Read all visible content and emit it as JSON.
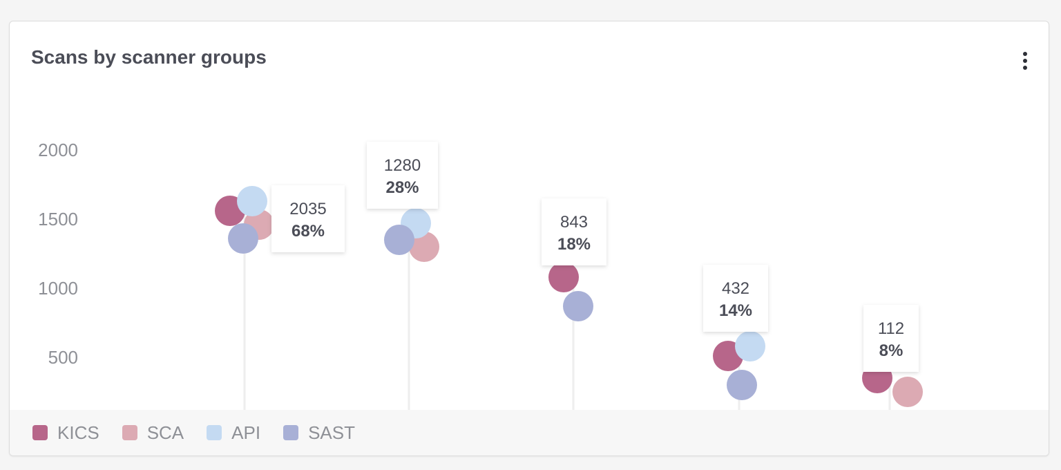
{
  "card": {
    "title": "Scans by scanner groups"
  },
  "colors": {
    "KICS": "#b7668a",
    "SCA": "#dcaab3",
    "API": "#c4daf2",
    "SAST": "#a8b0d6"
  },
  "legend": [
    {
      "name": "KICS",
      "color": "#b7668a"
    },
    {
      "name": "SCA",
      "color": "#dcaab3"
    },
    {
      "name": "API",
      "color": "#c4daf2"
    },
    {
      "name": "SAST",
      "color": "#a8b0d6"
    }
  ],
  "chart_data": {
    "type": "scatter",
    "title": "Scans by scanner groups",
    "yticks": [
      500,
      1000,
      1500,
      2000
    ],
    "ylim": [
      0,
      2300
    ],
    "grid": false,
    "legend_position": "bottom",
    "groups": [
      {
        "label_value": "2035",
        "label_pct": "68%",
        "points": [
          {
            "series": "KICS",
            "value": 1560
          },
          {
            "series": "SCA",
            "value": 1460
          },
          {
            "series": "API",
            "value": 1630
          },
          {
            "series": "SAST",
            "value": 1360
          }
        ]
      },
      {
        "label_value": "1280",
        "label_pct": "28%",
        "points": [
          {
            "series": "SCA",
            "value": 1300
          },
          {
            "series": "API",
            "value": 1470
          },
          {
            "series": "SAST",
            "value": 1350
          }
        ]
      },
      {
        "label_value": "843",
        "label_pct": "18%",
        "points": [
          {
            "series": "KICS",
            "value": 1080
          },
          {
            "series": "SAST",
            "value": 870
          }
        ]
      },
      {
        "label_value": "432",
        "label_pct": "14%",
        "points": [
          {
            "series": "KICS",
            "value": 510
          },
          {
            "series": "API",
            "value": 580
          },
          {
            "series": "SAST",
            "value": 300
          }
        ]
      },
      {
        "label_value": "112",
        "label_pct": "8%",
        "points": [
          {
            "series": "KICS",
            "value": 350
          },
          {
            "series": "SCA",
            "value": 250
          }
        ]
      }
    ]
  }
}
